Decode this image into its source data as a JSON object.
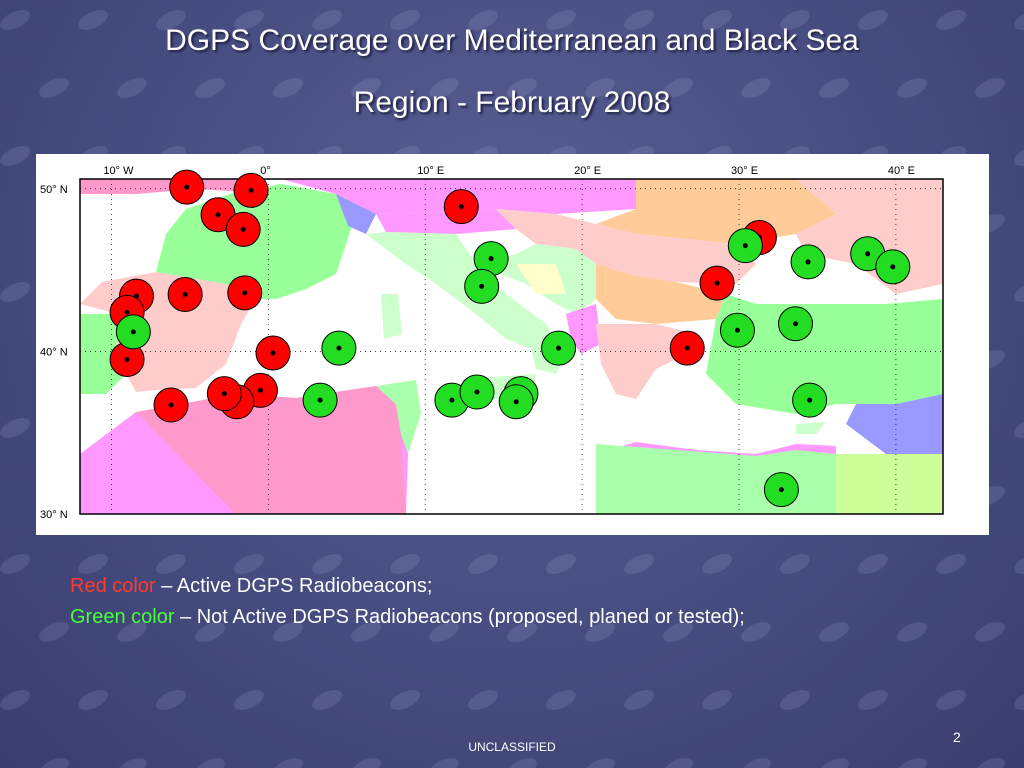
{
  "title_line1": "DGPS Coverage over Mediterranean and Black Sea",
  "title_line2": "Region - February 2008",
  "map": {
    "lon_labels": [
      "10° W",
      "0°",
      "10° E",
      "20° E",
      "30° E",
      "40° E"
    ],
    "lat_labels": [
      "50° N",
      "40° N",
      "30° N"
    ],
    "colors": {
      "active": "#ff0000",
      "not_active": "#22dd22",
      "sea": "#ffffff"
    },
    "active_beacons": [
      [
        -5.2,
        50.1
      ],
      [
        -1.1,
        49.9
      ],
      [
        -3.2,
        48.4
      ],
      [
        -1.6,
        47.5
      ],
      [
        -8.4,
        43.4
      ],
      [
        -5.3,
        43.5
      ],
      [
        -1.5,
        43.6
      ],
      [
        -9.0,
        42.4
      ],
      [
        -9.0,
        39.5
      ],
      [
        0.3,
        39.9
      ],
      [
        -0.5,
        37.6
      ],
      [
        -6.2,
        36.7
      ],
      [
        -2.0,
        36.9
      ],
      [
        -2.8,
        37.4
      ],
      [
        12.3,
        48.9
      ],
      [
        31.3,
        47.0
      ],
      [
        28.6,
        44.2
      ],
      [
        26.7,
        40.2
      ]
    ],
    "not_active_beacons": [
      [
        -8.6,
        41.2
      ],
      [
        4.5,
        40.2
      ],
      [
        3.3,
        37.0
      ],
      [
        14.2,
        45.7
      ],
      [
        13.6,
        44.0
      ],
      [
        18.5,
        40.2
      ],
      [
        11.7,
        37.0
      ],
      [
        13.3,
        37.5
      ],
      [
        16.1,
        37.4
      ],
      [
        15.8,
        36.9
      ],
      [
        30.4,
        46.5
      ],
      [
        34.4,
        45.5
      ],
      [
        38.2,
        46.0
      ],
      [
        39.8,
        45.2
      ],
      [
        29.9,
        41.3
      ],
      [
        33.6,
        41.7
      ],
      [
        34.5,
        37.0
      ],
      [
        32.7,
        31.5
      ]
    ]
  },
  "legend_red_label": "Red color",
  "legend_red_text": " – Active DGPS Radiobeacons;",
  "legend_green_label": "Green color",
  "legend_green_text": " – Not Active DGPS Radiobeacons (proposed, planed or tested);",
  "footer": "UNCLASSIFIED",
  "page_number": "2"
}
